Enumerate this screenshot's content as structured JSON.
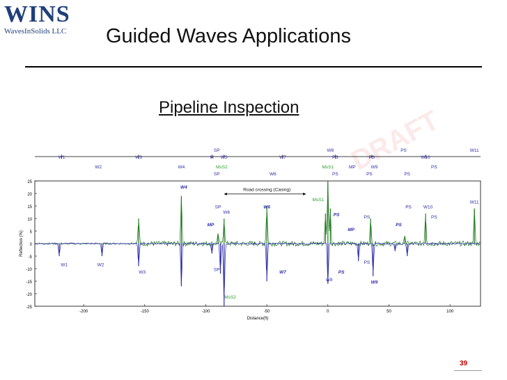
{
  "logo": {
    "main": "WINS",
    "sub": "WavesInSolids LLC"
  },
  "title": "Guided Waves Applications",
  "subtitle": "Pipeline Inspection",
  "page_number": "39",
  "colors": {
    "forward": "#1f7a1f",
    "backward": "#2b2ba8",
    "label_green": "#2e9e2e"
  },
  "chart_data": {
    "type": "line",
    "xlabel": "Distance(ft)",
    "ylabel": "Reflection (%)",
    "xlim": [
      -240,
      125
    ],
    "ylim": [
      -25,
      25
    ],
    "xticks": [
      -200,
      -150,
      -100,
      -50,
      0,
      50,
      100
    ],
    "yticks": [
      25,
      20,
      15,
      10,
      5,
      0,
      -5,
      -10,
      -15,
      -20,
      -25
    ],
    "grid": false,
    "series": [
      {
        "color": "green",
        "baseline": 0,
        "noise_start": -155,
        "peaks": [
          [
            -155,
            10
          ],
          [
            -120,
            19
          ],
          [
            -90,
            4
          ],
          [
            -85,
            10
          ],
          [
            -50,
            15
          ],
          [
            -2,
            12
          ],
          [
            0,
            25
          ],
          [
            2,
            14
          ],
          [
            35,
            10
          ],
          [
            63,
            3
          ],
          [
            80,
            12
          ],
          [
            120,
            14
          ]
        ]
      },
      {
        "color": "blue",
        "baseline": 0,
        "peaks": [
          [
            -220,
            -5
          ],
          [
            -185,
            -5
          ],
          [
            -155,
            -9
          ],
          [
            -120,
            -17
          ],
          [
            -95,
            -4
          ],
          [
            -88,
            -12
          ],
          [
            -85,
            -25
          ],
          [
            -50,
            -15
          ],
          [
            0,
            -16
          ],
          [
            25,
            -7
          ],
          [
            37,
            -13
          ],
          [
            55,
            -3
          ],
          [
            65,
            -5
          ]
        ]
      }
    ],
    "annotations": [
      {
        "text": "W1",
        "x": -218,
        "level": "top1",
        "color": "blue"
      },
      {
        "text": "W2",
        "x": -188,
        "level": "top2",
        "color": "blue"
      },
      {
        "text": "W3",
        "x": -155,
        "level": "top1",
        "color": "blue"
      },
      {
        "text": "W4",
        "x": -120,
        "level": "top2",
        "color": "blue"
      },
      {
        "text": "SP",
        "x": -91,
        "level": "top0",
        "color": "blue"
      },
      {
        "text": "M",
        "x": -95,
        "level": "top1",
        "color": "blue"
      },
      {
        "text": "W5",
        "x": -85,
        "level": "top1",
        "color": "blue"
      },
      {
        "text": "MsS2",
        "x": -87,
        "level": "top2",
        "color": "green"
      },
      {
        "text": "SP",
        "x": -91,
        "level": "top3",
        "color": "blue"
      },
      {
        "text": "W7",
        "x": -37,
        "level": "top1",
        "color": "blue"
      },
      {
        "text": "W6",
        "x": -45,
        "level": "top3",
        "color": "blue"
      },
      {
        "text": "W8",
        "x": 2,
        "level": "top0",
        "color": "blue"
      },
      {
        "text": "PS",
        "x": 6,
        "level": "top1",
        "color": "blue"
      },
      {
        "text": "MsS1",
        "x": 0,
        "level": "top2",
        "color": "green"
      },
      {
        "text": "PS",
        "x": 6,
        "level": "top3",
        "color": "blue"
      },
      {
        "text": "MP",
        "x": 20,
        "level": "top2",
        "color": "blue"
      },
      {
        "text": "PS",
        "x": 36,
        "level": "top1",
        "color": "blue"
      },
      {
        "text": "W9",
        "x": 38,
        "level": "top2",
        "color": "blue"
      },
      {
        "text": "PS",
        "x": 34,
        "level": "top3",
        "color": "blue"
      },
      {
        "text": "PS",
        "x": 62,
        "level": "top0",
        "color": "blue"
      },
      {
        "text": "W10",
        "x": 80,
        "level": "top1",
        "color": "blue"
      },
      {
        "text": "PS",
        "x": 65,
        "level": "top3",
        "color": "blue"
      },
      {
        "text": "PS",
        "x": 87,
        "level": "top2",
        "color": "blue"
      },
      {
        "text": "W11",
        "x": 120,
        "level": "top0",
        "color": "blue"
      },
      {
        "text": "W4",
        "x": -118,
        "y": 22,
        "color": "blue",
        "italic": true
      },
      {
        "text": "Road crossing (Casing)",
        "x": -50,
        "y": 21,
        "color": "black"
      },
      {
        "text": "MsS1",
        "x": -8,
        "y": 17,
        "color": "green"
      },
      {
        "text": "SP",
        "x": -90,
        "y": 14,
        "color": "blue"
      },
      {
        "text": "W6",
        "x": -50,
        "y": 14,
        "color": "blue",
        "italic": true
      },
      {
        "text": "W6",
        "x": -83,
        "y": 12,
        "color": "blue"
      },
      {
        "text": "MP",
        "x": -96,
        "y": 7,
        "color": "blue",
        "italic": true
      },
      {
        "text": "PS",
        "x": 7,
        "y": 11,
        "color": "blue",
        "italic": true
      },
      {
        "text": "PS",
        "x": 32,
        "y": 10,
        "color": "blue"
      },
      {
        "text": "MP",
        "x": 19,
        "y": 5,
        "color": "blue",
        "italic": true
      },
      {
        "text": "PS",
        "x": 58,
        "y": 7,
        "color": "blue",
        "italic": true
      },
      {
        "text": "PS",
        "x": 66,
        "y": 14,
        "color": "blue"
      },
      {
        "text": "W10",
        "x": 82,
        "y": 14,
        "color": "blue"
      },
      {
        "text": "PS",
        "x": 87,
        "y": 10,
        "color": "blue"
      },
      {
        "text": "W11",
        "x": 120,
        "y": 16,
        "color": "blue"
      },
      {
        "text": "W1",
        "x": -216,
        "y": -9,
        "color": "blue"
      },
      {
        "text": "W2",
        "x": -186,
        "y": -9,
        "color": "blue"
      },
      {
        "text": "W3",
        "x": -152,
        "y": -12,
        "color": "blue"
      },
      {
        "text": "SP",
        "x": -91,
        "y": -11,
        "color": "blue"
      },
      {
        "text": "W7",
        "x": -37,
        "y": -12,
        "color": "blue",
        "italic": true
      },
      {
        "text": "PS",
        "x": 11,
        "y": -12,
        "color": "blue",
        "italic": true
      },
      {
        "text": "PS",
        "x": 32,
        "y": -8,
        "color": "blue"
      },
      {
        "text": "W8",
        "x": 1,
        "y": -15,
        "color": "blue"
      },
      {
        "text": "W9",
        "x": 38,
        "y": -16,
        "color": "blue",
        "italic": true
      },
      {
        "text": "MsS2",
        "x": -80,
        "y": -22,
        "color": "green"
      }
    ]
  }
}
